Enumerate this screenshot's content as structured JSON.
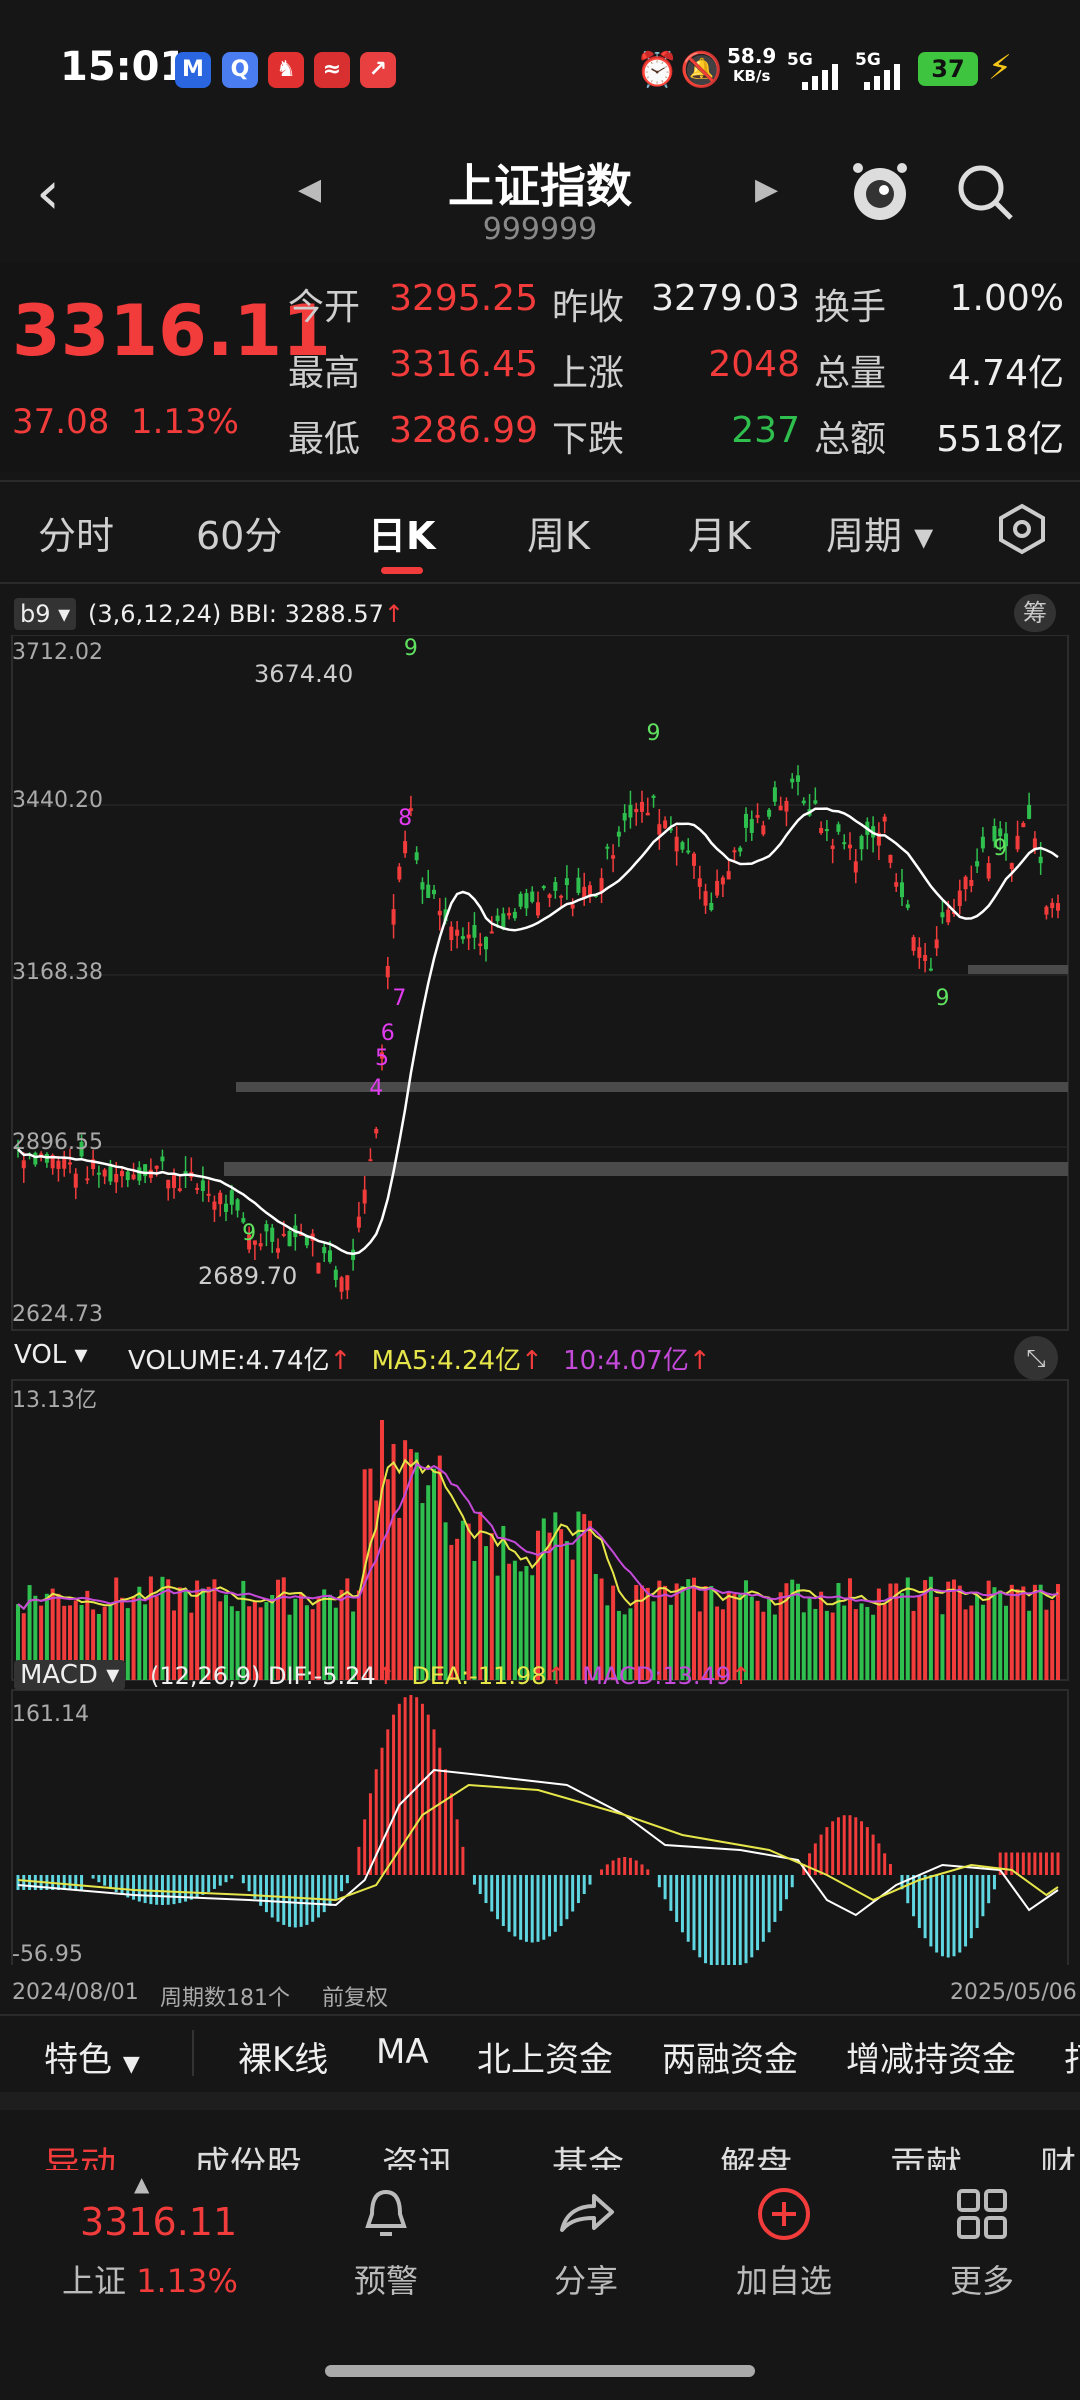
{
  "status_bar": {
    "time": "15:01",
    "net_speed_value": "58.9",
    "net_speed_unit": "KB/s",
    "sim1": "5G",
    "sim2": "5G",
    "battery": "37"
  },
  "header": {
    "title": "上证指数",
    "code": "999999"
  },
  "quote": {
    "price": "3316.11",
    "change": "37.08",
    "change_pct": "1.13%",
    "fields": [
      {
        "label": "今开",
        "value": "3295.25"
      },
      {
        "label": "昨收",
        "value": "3279.03"
      },
      {
        "label": "换手",
        "value": "1.00%"
      },
      {
        "label": "最高",
        "value": "3316.45"
      },
      {
        "label": "上涨",
        "value": "2048"
      },
      {
        "label": "总量",
        "value": "4.74亿"
      },
      {
        "label": "最低",
        "value": "3286.99"
      },
      {
        "label": "下跌",
        "value": "237"
      },
      {
        "label": "总额",
        "value": "5518亿"
      }
    ]
  },
  "period_tabs": [
    "分时",
    "60分",
    "日K",
    "周K",
    "月K",
    "周期"
  ],
  "active_tab": "日K",
  "kline": {
    "indicator": "b9",
    "params": "(3,6,12,24)",
    "bbi_label": "BBI:",
    "bbi_value": "3288.57",
    "bbi_arrow": "↑",
    "side_button": "筹",
    "y_labels": [
      "3712.02",
      "3440.20",
      "3168.38",
      "2896.55",
      "2624.73"
    ],
    "high_annotation": "3674.40",
    "low_annotation": "2689.70"
  },
  "volume": {
    "indicator": "VOL",
    "volume_label": "VOLUME:",
    "volume_value": "4.74亿",
    "ma5_label": "MA5:",
    "ma5_value": "4.24亿",
    "ma10_label": "10:",
    "ma10_value": "4.07亿",
    "arrow": "↑",
    "y_max": "13.13亿"
  },
  "macd": {
    "indicator": "MACD",
    "params": "(12,26,9)",
    "dif_label": "DIF:",
    "dif_value": "-5.24",
    "dea_label": "DEA:",
    "dea_value": "-11.98",
    "macd_label": "MACD:",
    "macd_value": "13.49",
    "arrow": "↑",
    "y_max": "161.14",
    "y_min": "-56.95"
  },
  "x_axis": {
    "start_date": "2024/08/01",
    "period_count": "周期数181个",
    "adjust": "前复权",
    "end_date": "2025/05/06"
  },
  "feature_bar": {
    "dropdown": "特色",
    "items": [
      "裸K线",
      "MA",
      "北上资金",
      "两融资金",
      "增减持资金",
      "打"
    ]
  },
  "info_tabs": [
    "异动",
    "成份股",
    "资讯",
    "基金",
    "解盘",
    "贡献",
    "财"
  ],
  "bottom_nav": {
    "price": "3316.11",
    "index_name": "上证",
    "index_pct": "1.13%",
    "items": [
      "预警",
      "分享",
      "加自选",
      "更多"
    ]
  },
  "colors": {
    "up": "#f23b3b",
    "down": "#2fbf4e",
    "bbi": "#ffffff",
    "ma5": "#e6e64a",
    "ma10": "#c44ad9",
    "td_sequence": "#e23cf0"
  }
}
